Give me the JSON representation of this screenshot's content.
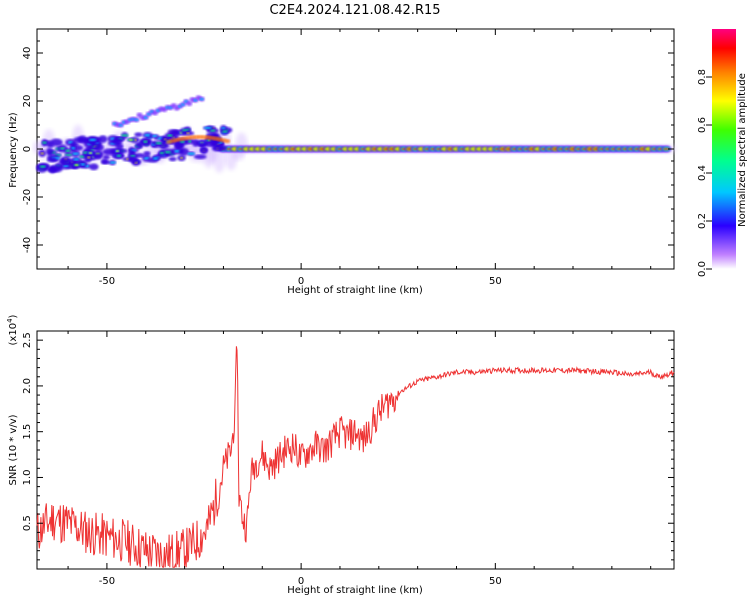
{
  "title": "C2E4.2024.121.08.42.R15",
  "chart_data": [
    {
      "type": "heatmap",
      "xlabel": "Height of straight line (km)",
      "ylabel": "Frequency (Hz)",
      "xlim": [
        -68,
        96
      ],
      "ylim": [
        -50,
        50
      ],
      "xticks": [
        "-50",
        "0",
        "50"
      ],
      "yticks": [
        "40",
        "20",
        "0",
        "-20",
        "-40"
      ],
      "colorbar": {
        "label": "Normalized spectral amplitude",
        "range": [
          0,
          1
        ],
        "ticks": [
          "0.0",
          "0.2",
          "0.4",
          "0.6",
          "0.8"
        ]
      },
      "features": [
        {
          "name": "main-line",
          "x": [
            -20,
            95
          ],
          "freq": 0,
          "amplitude": "high (red/yellow along centre)"
        },
        {
          "name": "harmonic-streak",
          "x": [
            -48,
            -25
          ],
          "freq": [
            10,
            22
          ],
          "amplitude": "medium"
        },
        {
          "name": "noisy-region",
          "x": [
            -68,
            -20
          ],
          "freq": [
            -10,
            8
          ],
          "amplitude": "medium"
        }
      ]
    },
    {
      "type": "line",
      "xlabel": "Height of straight line (km)",
      "ylabel": "SNR (10 * v/v)",
      "yscale_label": "(x10",
      "yscale_exp": "4",
      "yscale_close": ")",
      "xlim": [
        -68,
        96
      ],
      "ylim": [
        0,
        2.6
      ],
      "xticks": [
        "-50",
        "0",
        "50"
      ],
      "yticks": [
        "0.5",
        "1.0",
        "1.5",
        "2.0",
        "2.5"
      ],
      "line_color": "#ee3333",
      "series": [
        {
          "name": "SNR",
          "x": [
            -68,
            -64,
            -60,
            -55,
            -50,
            -45,
            -40,
            -35,
            -30,
            -27,
            -24,
            -22,
            -20,
            -18,
            -17,
            -16.5,
            -16,
            -15,
            -14,
            -13,
            -12,
            -10,
            -8,
            -6,
            -4,
            -2,
            0,
            2,
            4,
            6,
            8,
            10,
            12,
            14,
            16,
            18,
            20,
            23,
            26,
            30,
            35,
            40,
            45,
            50,
            60,
            70,
            80,
            85,
            90,
            92,
            94,
            96
          ],
          "values": [
            0.4,
            0.55,
            0.5,
            0.4,
            0.35,
            0.3,
            0.2,
            0.15,
            0.2,
            0.3,
            0.45,
            0.75,
            1.1,
            1.3,
            1.7,
            2.55,
            0.8,
            0.55,
            0.45,
            1.0,
            1.15,
            1.25,
            1.1,
            1.2,
            1.3,
            1.35,
            1.2,
            1.3,
            1.35,
            1.3,
            1.4,
            1.5,
            1.45,
            1.5,
            1.4,
            1.55,
            1.7,
            1.85,
            1.95,
            2.05,
            2.1,
            2.15,
            2.15,
            2.17,
            2.17,
            2.17,
            2.15,
            2.12,
            2.15,
            2.1,
            2.12,
            2.15
          ]
        }
      ]
    }
  ]
}
